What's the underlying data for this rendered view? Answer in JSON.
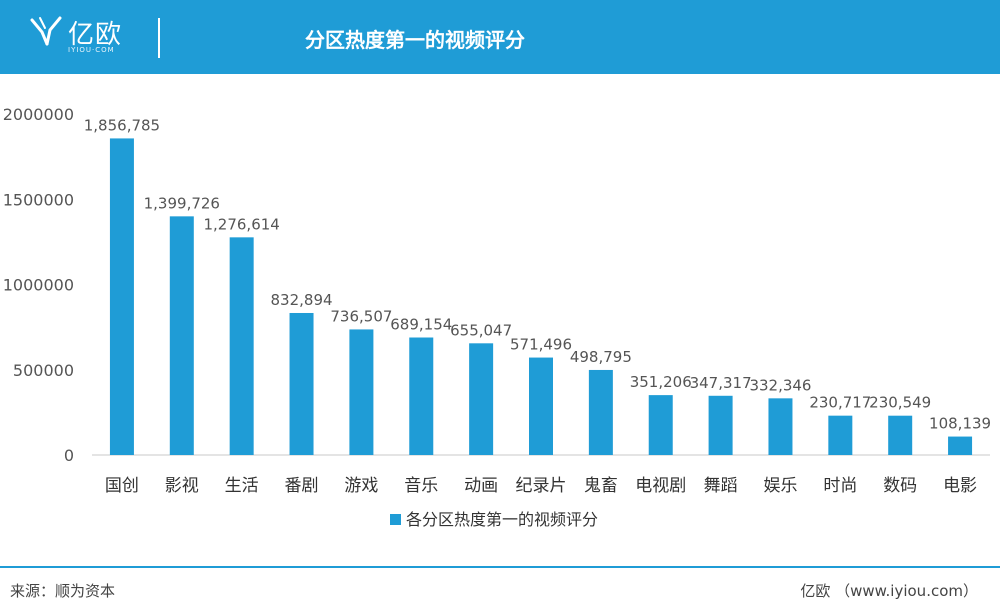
{
  "header": {
    "logo_text": "亿欧",
    "logo_sub": "IYIOU·COM",
    "title": "分区热度第一的视频评分"
  },
  "colors": {
    "accent": "#1f9cd6",
    "bar": "#1f9cd6"
  },
  "chart_data": {
    "type": "bar",
    "title": "分区热度第一的视频评分",
    "xlabel": "",
    "ylabel": "",
    "categories": [
      "国创",
      "影视",
      "生活",
      "番剧",
      "游戏",
      "音乐",
      "动画",
      "纪录片",
      "鬼畜",
      "电视剧",
      "舞蹈",
      "娱乐",
      "时尚",
      "数码",
      "电影"
    ],
    "series": [
      {
        "name": "各分区热度第一的视频评分",
        "values": [
          1856785,
          1399726,
          1276614,
          832894,
          736507,
          689154,
          655047,
          571496,
          498795,
          351206,
          347317,
          332346,
          230717,
          230549,
          108139
        ]
      }
    ],
    "data_labels": [
      "1,856,785",
      "1,399,726",
      "1,276,614",
      "832,894",
      "736,507",
      "689,154",
      "655,047",
      "571,496",
      "498,795",
      "351,206",
      "347,317",
      "332,346",
      "230,717",
      "230,549",
      "108,139"
    ],
    "ylim": [
      0,
      2000000
    ],
    "yticks": [
      0,
      500000,
      1000000,
      1500000,
      2000000
    ],
    "ytick_labels": [
      "0",
      "500000",
      "1000000",
      "1500000",
      "2000000"
    ],
    "grid": false,
    "legend_position": "bottom-center"
  },
  "footer": {
    "source": "来源：顺为资本",
    "credit": "亿欧 （www.iyiou.com）"
  }
}
